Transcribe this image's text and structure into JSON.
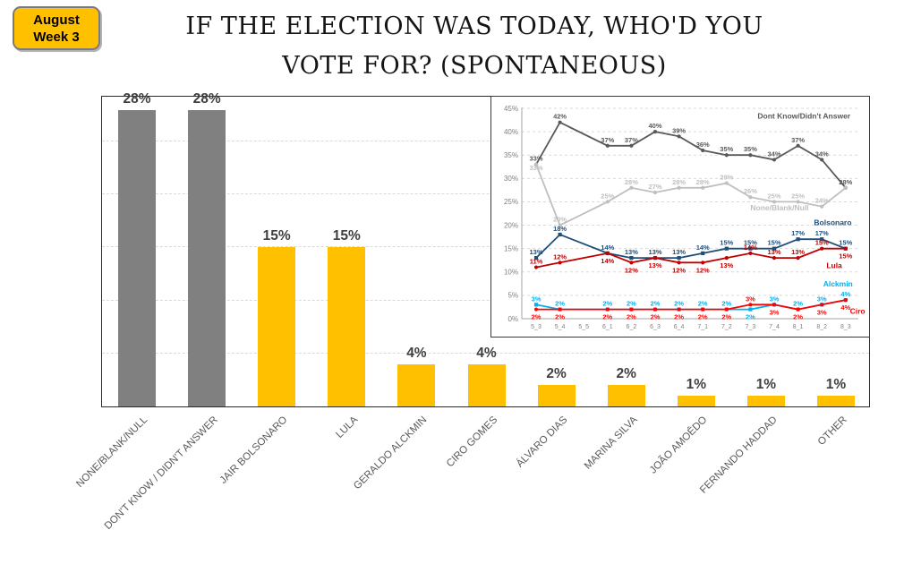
{
  "badge": {
    "line1": "August",
    "line2": "Week 3"
  },
  "title": {
    "line1": "IF THE ELECTION WAS TODAY, WHO'D YOU",
    "line2": "VOTE FOR? (SPONTANEOUS)"
  },
  "colors": {
    "accent_yellow": "#FFC000",
    "bar_gray": "#808080",
    "value_label_gray": "#3f3f3f",
    "category_label_gray": "#595959",
    "dk_gray": "#595959",
    "none_gray": "#BFBFBF",
    "bolsonaro_blue": "#1F4E79",
    "lula_red": "#C00000",
    "alckmin_blue": "#00B0F0",
    "ciro_red": "#FF0000"
  },
  "chart_data": [
    {
      "type": "bar",
      "title": "If the election was today, who'd you vote for? (spontaneous)",
      "categories": [
        "NONE/BLANK/NULL",
        "DON'T KNOW / DIDN'T ANSWER",
        "JAIR BOLSONARO",
        "LULA",
        "GERALDO ALCKMIN",
        "CIRO GOMES",
        "ÁLVARO DIAS",
        "MARINA SILVA",
        "JOÃO AMOÊDO",
        "FERNANDO HADDAD",
        "OTHER"
      ],
      "values": [
        28,
        28,
        15,
        15,
        4,
        4,
        2,
        2,
        1,
        1,
        1
      ],
      "value_labels": [
        "28%",
        "28%",
        "15%",
        "15%",
        "4%",
        "4%",
        "2%",
        "2%",
        "1%",
        "1%",
        "1%"
      ],
      "bar_colors": [
        "#808080",
        "#808080",
        "#FFC000",
        "#FFC000",
        "#FFC000",
        "#FFC000",
        "#FFC000",
        "#FFC000",
        "#FFC000",
        "#FFC000",
        "#FFC000"
      ],
      "xlabel": "",
      "ylabel": "",
      "ylim": [
        0,
        29.4
      ],
      "grid": "dashed-horizontal",
      "grid_step": 5,
      "grid_max": 25
    },
    {
      "type": "line",
      "title": "",
      "x": [
        "5_3",
        "5_4",
        "5_5",
        "6_1",
        "6_2",
        "6_3",
        "6_4",
        "7_1",
        "7_2",
        "7_3",
        "7_4",
        "8_1",
        "8_2",
        "8_3"
      ],
      "ylim": [
        0,
        45
      ],
      "yticks": [
        "0%",
        "5%",
        "10%",
        "15%",
        "20%",
        "25%",
        "30%",
        "35%",
        "40%",
        "45%"
      ],
      "grid": "dashed-horizontal",
      "legend_position": "inline-right",
      "series": [
        {
          "name": "Dont Know/Didn't Answer",
          "color": "#595959",
          "marker": "circle",
          "values": [
            33,
            42,
            null,
            37,
            37,
            40,
            39,
            36,
            35,
            35,
            34,
            37,
            34,
            28
          ],
          "label_sides": [
            "above",
            "above",
            null,
            "above",
            "above",
            "above",
            "above",
            "above",
            "above",
            "above",
            "above",
            "above",
            "above",
            "above"
          ]
        },
        {
          "name": "None/Blank/Null",
          "color": "#BFBFBF",
          "marker": "circle",
          "values": [
            33,
            20,
            null,
            25,
            28,
            27,
            28,
            28,
            29,
            26,
            25,
            25,
            24,
            28
          ],
          "label_sides": [
            "stack",
            "above",
            null,
            "above",
            "above",
            "above",
            "above",
            "above",
            "above",
            "above",
            "above",
            "above",
            "above",
            "hide"
          ]
        },
        {
          "name": "Bolsonaro",
          "color": "#1F4E79",
          "marker": "square",
          "values": [
            13,
            18,
            null,
            14,
            13,
            13,
            13,
            14,
            15,
            15,
            15,
            17,
            17,
            15
          ],
          "label_sides": [
            "above",
            "above",
            null,
            "above",
            "above",
            "above",
            "above",
            "above",
            "above",
            "above",
            "above",
            "above",
            "above",
            "above"
          ]
        },
        {
          "name": "Lula",
          "color": "#C00000",
          "marker": "circle",
          "values": [
            11,
            12,
            null,
            14,
            12,
            13,
            12,
            12,
            13,
            14,
            13,
            13,
            15,
            15
          ],
          "label_sides": [
            "above",
            "above",
            null,
            "below",
            "below",
            "below",
            "below",
            "below",
            "below",
            "above",
            "above",
            "above",
            "above",
            "below"
          ]
        },
        {
          "name": "Alckmin",
          "color": "#00B0F0",
          "marker": "square",
          "values": [
            3,
            2,
            null,
            2,
            2,
            2,
            2,
            2,
            2,
            2,
            3,
            2,
            3,
            4
          ],
          "label_sides": [
            "above",
            "above",
            null,
            "above",
            "above",
            "above",
            "above",
            "above",
            "above",
            "below",
            "above",
            "above",
            "above",
            "above"
          ]
        },
        {
          "name": "Ciro",
          "color": "#FF0000",
          "marker": "circle",
          "values": [
            2,
            2,
            null,
            2,
            2,
            2,
            2,
            2,
            2,
            3,
            3,
            2,
            3,
            4
          ],
          "label_sides": [
            "below",
            "below",
            null,
            "below",
            "below",
            "below",
            "below",
            "below",
            "below",
            "above",
            "below",
            "below",
            "below",
            "below"
          ]
        }
      ],
      "annotations": [
        {
          "text": "Dont Know/Didn't Answer",
          "color": "#595959",
          "xi": 13.2,
          "y": 42.8,
          "anchor": "end"
        },
        {
          "text": "None/Blank/Null",
          "color": "#BFBFBF",
          "xi": 11.45,
          "y": 23.2,
          "anchor": "end"
        },
        {
          "text": "Bolsonaro",
          "color": "#1F4E79",
          "xi": 13.25,
          "y": 20.0,
          "anchor": "end"
        },
        {
          "text": "Lula",
          "color": "#C00000",
          "xi": 12.85,
          "y": 10.8,
          "anchor": "end"
        },
        {
          "text": "Alckmin",
          "color": "#00B0F0",
          "xi": 13.3,
          "y": 6.9,
          "anchor": "end"
        },
        {
          "text": "Ciro",
          "color": "#FF0000",
          "xi": 13.18,
          "y": 1.1,
          "anchor": "start"
        }
      ]
    }
  ]
}
